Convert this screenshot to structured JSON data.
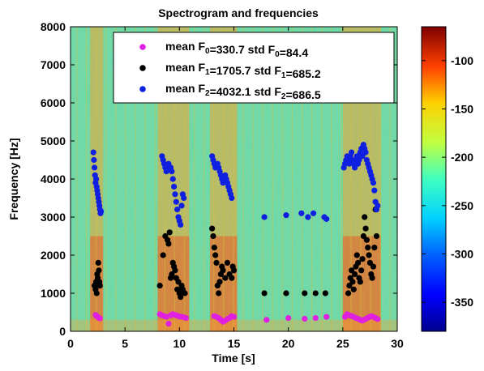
{
  "chart_data": {
    "type": "scatter",
    "title": "Spectrogram and frequencies",
    "xlabel": "Time [s]",
    "ylabel": "Frequency [Hz]",
    "xlim": [
      0,
      30
    ],
    "ylim": [
      0,
      8000
    ],
    "xticks": [
      "0",
      "5",
      "10",
      "15",
      "20",
      "25",
      "30"
    ],
    "yticks": [
      "0",
      "1000",
      "2000",
      "3000",
      "4000",
      "5000",
      "6000",
      "7000",
      "8000"
    ],
    "grid": false,
    "legend_position": "top-right",
    "colorbar": {
      "ticks": [
        "-100",
        "-150",
        "-200",
        "-250",
        "-300",
        "-350"
      ],
      "range": [
        -380,
        -65
      ],
      "colormap": "jet"
    },
    "background": "spectrogram (jet colormap), energy bursts near 2.5 s, 8.5-10.5 s, 13-15 s, 25-28 s",
    "legend": [
      {
        "label_main": "mean F",
        "sub": "0",
        "mid": "=330.7  std F",
        "sub2": "0",
        "tail": "=84.4",
        "color": "#e020e0"
      },
      {
        "label_main": "mean F",
        "sub": "1",
        "mid": "=1705.7  std F",
        "sub2": "1",
        "tail": "=685.2",
        "color": "#000000"
      },
      {
        "label_main": "mean F",
        "sub": "2",
        "mid": "=4032.1  std F",
        "sub2": "2",
        "tail": "=686.5",
        "color": "#1020e0"
      }
    ],
    "series": [
      {
        "color": "#e020e0",
        "x": [
          2.3,
          2.4,
          2.5,
          2.6,
          2.7,
          8.2,
          8.4,
          8.6,
          8.8,
          9.0,
          9.2,
          9.4,
          9.6,
          9.8,
          10.0,
          10.2,
          10.4,
          10.6,
          13.2,
          13.4,
          13.6,
          13.8,
          14.0,
          14.2,
          14.4,
          14.6,
          14.8,
          15.0,
          18.0,
          20.0,
          21.5,
          22.5,
          23.5,
          25.2,
          25.4,
          25.6,
          25.8,
          26.0,
          26.2,
          26.4,
          26.6,
          26.8,
          27.0,
          27.2,
          27.4,
          27.6,
          27.8,
          28.0,
          28.2
        ],
        "y": [
          430,
          400,
          380,
          350,
          340,
          450,
          420,
          400,
          380,
          200,
          420,
          450,
          430,
          410,
          390,
          380,
          370,
          350,
          400,
          380,
          350,
          300,
          250,
          280,
          320,
          350,
          400,
          380,
          300,
          350,
          330,
          350,
          380,
          380,
          450,
          420,
          400,
          380,
          350,
          330,
          300,
          280,
          310,
          340,
          370,
          400,
          380,
          350,
          320
        ]
      },
      {
        "color": "#000000",
        "x": [
          2.2,
          2.3,
          2.35,
          2.4,
          2.45,
          2.5,
          2.55,
          2.6,
          2.65,
          2.7,
          8.2,
          8.5,
          8.7,
          8.9,
          9.0,
          9.1,
          9.2,
          9.3,
          9.4,
          9.5,
          9.6,
          9.7,
          9.8,
          9.9,
          10.0,
          10.1,
          10.2,
          10.3,
          10.5,
          13.0,
          13.1,
          13.2,
          13.3,
          13.4,
          13.5,
          13.6,
          13.7,
          13.8,
          13.9,
          14.0,
          14.2,
          14.4,
          14.6,
          14.8,
          14.9,
          15.0,
          17.8,
          19.8,
          21.5,
          22.5,
          23.4,
          25.5,
          25.6,
          25.7,
          25.8,
          25.9,
          26.0,
          26.1,
          26.2,
          26.3,
          26.4,
          26.5,
          26.6,
          26.7,
          26.8,
          26.9,
          27.0,
          27.1,
          27.2,
          27.3,
          27.4,
          27.5,
          27.6,
          27.7,
          27.8,
          27.9,
          28.0,
          28.1
        ],
        "y": [
          1200,
          1100,
          1300,
          1000,
          1500,
          1400,
          1800,
          1600,
          1300,
          1200,
          1200,
          2000,
          2500,
          2400,
          2300,
          2600,
          1400,
          1500,
          1800,
          1700,
          1600,
          1400,
          1100,
          1300,
          1000,
          900,
          1200,
          1100,
          1000,
          2700,
          2500,
          2200,
          2000,
          1800,
          1200,
          1000,
          1300,
          1500,
          1700,
          1600,
          1400,
          1800,
          1500,
          1400,
          1700,
          1600,
          1000,
          1000,
          1000,
          1000,
          1000,
          1000,
          1200,
          1400,
          1600,
          1300,
          1100,
          1500,
          1700,
          2000,
          1800,
          1400,
          1300,
          1600,
          1900,
          2500,
          3000,
          2700,
          2400,
          2200,
          2000,
          1800,
          1500,
          1400,
          1700,
          2200,
          3200,
          2500
        ]
      },
      {
        "color": "#1020e0",
        "x": [
          2.1,
          2.15,
          2.2,
          2.25,
          2.3,
          2.35,
          2.4,
          2.45,
          2.5,
          2.55,
          2.6,
          2.65,
          2.7,
          2.75,
          2.8,
          8.4,
          8.5,
          8.6,
          8.7,
          8.8,
          8.9,
          9.0,
          9.1,
          9.2,
          9.3,
          9.4,
          9.5,
          9.6,
          9.7,
          9.8,
          9.9,
          10.0,
          10.1,
          10.2,
          10.3,
          10.4,
          13.0,
          13.1,
          13.2,
          13.3,
          13.4,
          13.5,
          13.6,
          13.7,
          13.8,
          13.9,
          14.0,
          14.1,
          14.2,
          14.3,
          14.4,
          14.5,
          14.6,
          14.7,
          14.8,
          17.8,
          19.8,
          21.2,
          21.8,
          22.3,
          23.3,
          23.5,
          25.1,
          25.2,
          25.3,
          25.4,
          25.5,
          25.6,
          25.7,
          25.8,
          25.9,
          26.0,
          26.1,
          26.2,
          26.3,
          26.4,
          26.5,
          26.6,
          26.7,
          26.8,
          26.9,
          27.0,
          27.1,
          27.2,
          27.3,
          27.4,
          27.5,
          27.6,
          27.7,
          27.8,
          27.9,
          28.0,
          28.1,
          28.2
        ],
        "y": [
          4700,
          4500,
          4300,
          4100,
          3900,
          4000,
          3800,
          3700,
          3600,
          3500,
          3400,
          3300,
          3200,
          3100,
          3150,
          4600,
          4500,
          4400,
          4300,
          4200,
          4350,
          4400,
          4250,
          4300,
          4200,
          4000,
          3800,
          3600,
          3400,
          3200,
          3000,
          2900,
          2800,
          3300,
          3600,
          3500,
          4600,
          4500,
          4400,
          4300,
          4350,
          4400,
          4300,
          4200,
          4100,
          4000,
          3900,
          4000,
          4100,
          4000,
          3900,
          3800,
          3700,
          3600,
          3500,
          3000,
          3050,
          3100,
          3000,
          3100,
          3000,
          2950,
          4300,
          4400,
          4500,
          4600,
          4500,
          4400,
          4600,
          4700,
          4500,
          4400,
          4300,
          4500,
          4600,
          4400,
          4500,
          4700,
          4800,
          4600,
          4900,
          4800,
          4700,
          4500,
          4400,
          4300,
          4200,
          4100,
          4000,
          3900,
          3700,
          3400,
          3200,
          3300
        ]
      }
    ]
  }
}
